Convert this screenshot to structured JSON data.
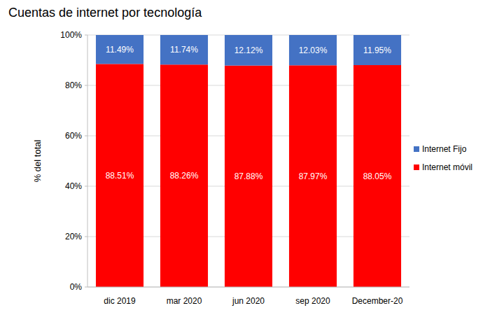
{
  "chart_data": {
    "type": "bar",
    "title": "Cuentas de internet por tecnología",
    "y_label": "% del total",
    "categories": [
      "dic 2019",
      "mar 2020",
      "jun 2020",
      "sep 2020",
      "December-20"
    ],
    "series": [
      {
        "name": "Internet móvil",
        "color": "#ff0000",
        "values": [
          88.51,
          88.26,
          87.88,
          87.97,
          88.05
        ],
        "value_labels": [
          "88.51%",
          "88.26%",
          "87.88%",
          "87.97%",
          "88.05%"
        ]
      },
      {
        "name": "Internet Fijo",
        "color": "#4472c4",
        "values": [
          11.49,
          11.74,
          12.12,
          12.03,
          11.95
        ],
        "value_labels": [
          "11.49%",
          "11.74%",
          "12.12%",
          "12.03%",
          "11.95%"
        ]
      }
    ],
    "ylim": [
      0,
      100
    ],
    "yticks": [
      {
        "value": 0,
        "label": "0%"
      },
      {
        "value": 20,
        "label": "20%"
      },
      {
        "value": 40,
        "label": "40%"
      },
      {
        "value": 60,
        "label": "60%"
      },
      {
        "value": 80,
        "label": "80%"
      },
      {
        "value": 100,
        "label": "100%"
      }
    ],
    "stacked": true,
    "data_labels": true,
    "grid": true,
    "legend": "right"
  }
}
